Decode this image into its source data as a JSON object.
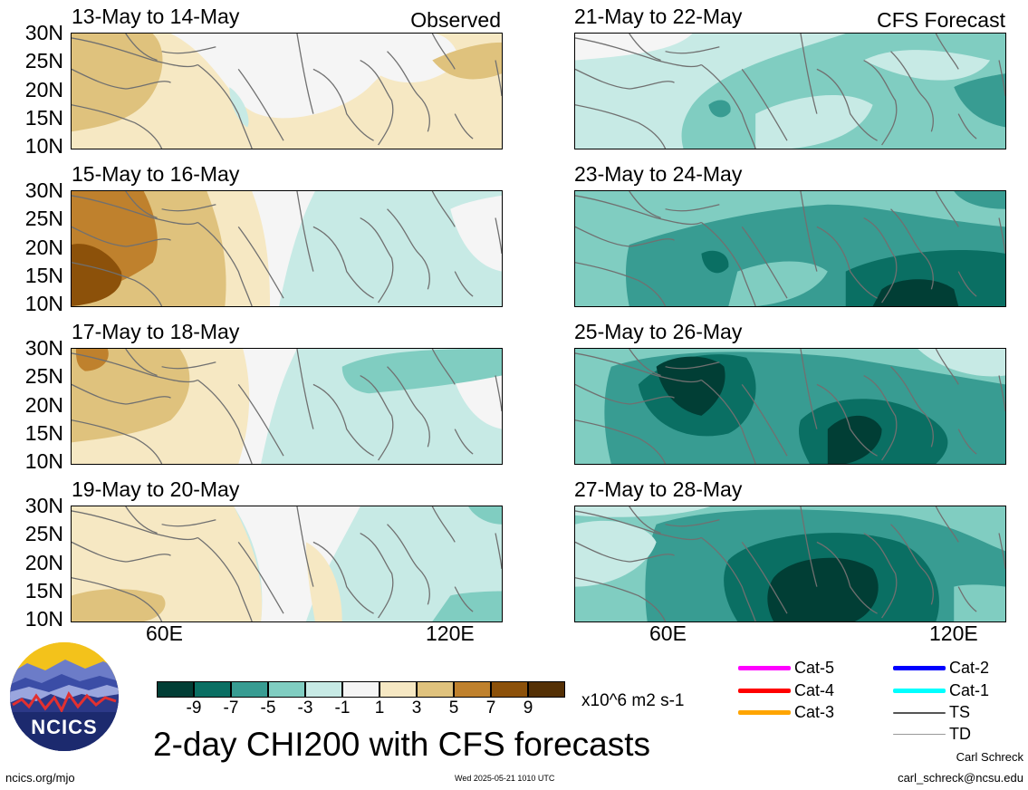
{
  "lat_labels": [
    "30N",
    "25N",
    "20N",
    "15N",
    "10N"
  ],
  "lon_labels": [
    "60E",
    "120E"
  ],
  "observed_label": "Observed",
  "forecast_label": "CFS Forecast",
  "panels_left": [
    {
      "title": "13-May to 14-May"
    },
    {
      "title": "15-May to 16-May"
    },
    {
      "title": "17-May to 18-May"
    },
    {
      "title": "19-May to 20-May"
    }
  ],
  "panels_right": [
    {
      "title": "21-May to 22-May"
    },
    {
      "title": "23-May to 24-May"
    },
    {
      "title": "25-May to 26-May"
    },
    {
      "title": "27-May to 28-May"
    }
  ],
  "colorbar": {
    "ticks": [
      "-9",
      "-7",
      "-5",
      "-3",
      "-1",
      "1",
      "3",
      "5",
      "7",
      "9"
    ],
    "colors": [
      "#013e35",
      "#0a6f63",
      "#389c92",
      "#80cdc1",
      "#c7eae5",
      "#f5f5f5",
      "#f6e8c3",
      "#dfc27d",
      "#bf812d",
      "#8c510a",
      "#543005"
    ],
    "units": "x10^6 m2 s-1"
  },
  "main_title": "2-day CHI200 with CFS forecasts",
  "legend": [
    {
      "label": "Cat-5",
      "color": "#ff00ff"
    },
    {
      "label": "Cat-4",
      "color": "#ff0000"
    },
    {
      "label": "Cat-3",
      "color": "#ffa500"
    },
    {
      "label": "Cat-2",
      "color": "#0000ff"
    },
    {
      "label": "Cat-1",
      "color": "#00ffff"
    },
    {
      "label": "TS",
      "color": "#555555"
    },
    {
      "label": "TD",
      "color": "#999999"
    }
  ],
  "logo_text": "NCICS",
  "footer": {
    "url": "ncics.org/mjo",
    "timestamp": "Wed 2025-05-21 1010 UTC",
    "author": "Carl Schreck",
    "email": "carl_schreck@ncsu.edu"
  }
}
